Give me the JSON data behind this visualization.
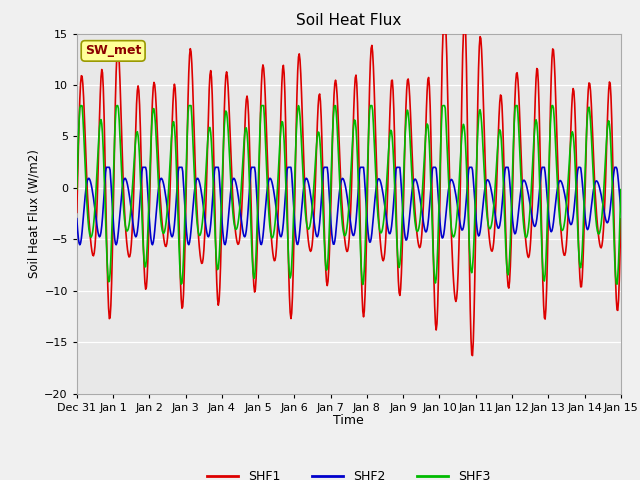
{
  "title": "Soil Heat Flux",
  "xlabel": "Time",
  "ylabel": "Soil Heat Flux (W/m2)",
  "ylim": [
    -20,
    15
  ],
  "yticks": [
    -20,
    -15,
    -10,
    -5,
    0,
    5,
    10,
    15
  ],
  "annotation": "SW_met",
  "fig_bg_color": "#f0f0f0",
  "plot_bg_color": "#e8e8e8",
  "line_colors": {
    "SHF1": "#dd0000",
    "SHF2": "#0000cc",
    "SHF3": "#00bb00"
  },
  "line_width": 1.2,
  "xtick_labels": [
    "Dec 31",
    "Jan 1",
    "Jan 2",
    "Jan 3",
    "Jan 4",
    "Jan 5",
    "Jan 6",
    "Jan 7",
    "Jan 8",
    "Jan 9",
    "Jan 10",
    "Jan 11",
    "Jan 12",
    "Jan 13",
    "Jan 14",
    "Jan 15"
  ],
  "days": 15
}
